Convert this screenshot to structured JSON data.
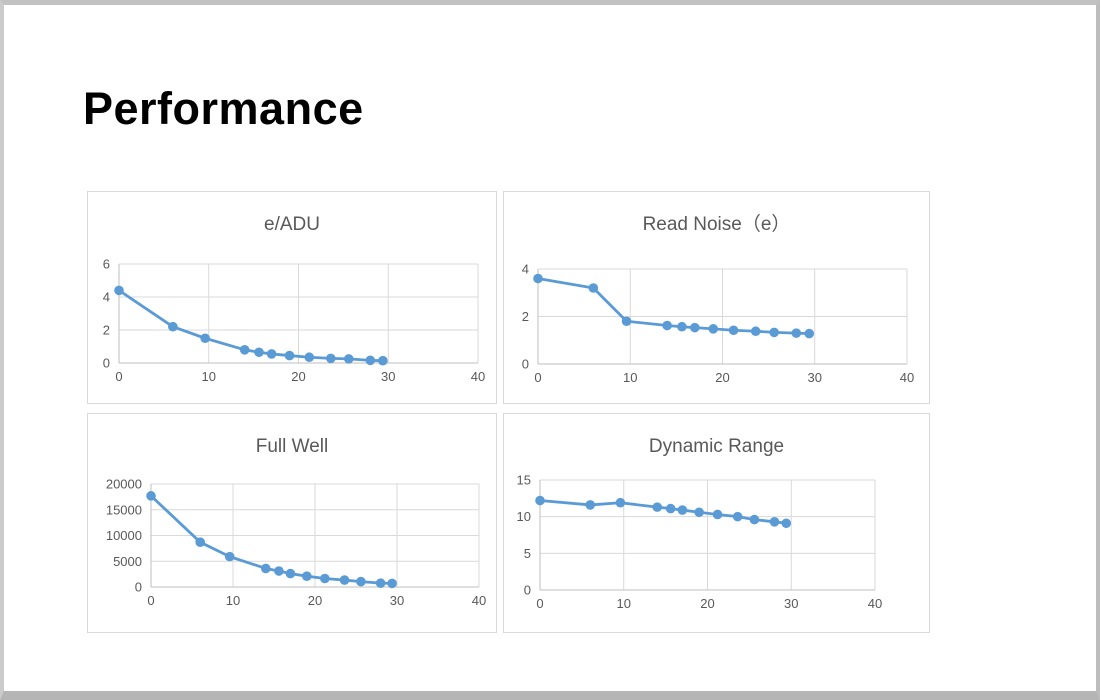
{
  "slide": {
    "title": "Performance"
  },
  "colors": {
    "series": "#5B9BD5",
    "gridline": "#d9d9d9",
    "axis": "#bfbfbf",
    "tick_label": "#595959",
    "chart_title": "#595959",
    "chart_border": "#d9d9d9"
  },
  "chart_data": [
    {
      "type": "line",
      "title": "e/ADU",
      "xlabel": "",
      "ylabel": "",
      "x": [
        0,
        6,
        9.6,
        14,
        15.6,
        17,
        19,
        21.2,
        23.6,
        25.6,
        28,
        29.4
      ],
      "values": [
        4.4,
        2.2,
        1.5,
        0.8,
        0.65,
        0.55,
        0.45,
        0.35,
        0.28,
        0.25,
        0.16,
        0.14
      ],
      "xlim": [
        0,
        40
      ],
      "ylim": [
        0,
        6
      ],
      "xticks": [
        0,
        10,
        20,
        30,
        40
      ],
      "yticks": [
        0,
        2,
        4,
        6
      ],
      "grid": true,
      "legend": "none",
      "marker": "circle"
    },
    {
      "type": "line",
      "title": "Read Noise（e）",
      "xlabel": "",
      "ylabel": "",
      "x": [
        0,
        6,
        9.6,
        14,
        15.6,
        17,
        19,
        21.2,
        23.6,
        25.6,
        28,
        29.4
      ],
      "values": [
        3.6,
        3.2,
        1.8,
        1.62,
        1.57,
        1.53,
        1.48,
        1.42,
        1.38,
        1.33,
        1.3,
        1.28
      ],
      "xlim": [
        0,
        40
      ],
      "ylim": [
        0,
        4
      ],
      "xticks": [
        0,
        10,
        20,
        30,
        40
      ],
      "yticks": [
        0,
        2,
        4
      ],
      "grid": true,
      "legend": "none",
      "marker": "circle"
    },
    {
      "type": "line",
      "title": "Full Well",
      "xlabel": "",
      "ylabel": "",
      "x": [
        0,
        6,
        9.6,
        14,
        15.6,
        17,
        19,
        21.2,
        23.6,
        25.6,
        28,
        29.4
      ],
      "values": [
        17700,
        8700,
        5900,
        3600,
        3100,
        2600,
        2100,
        1650,
        1350,
        1050,
        750,
        700
      ],
      "xlim": [
        0,
        40
      ],
      "ylim": [
        0,
        20000
      ],
      "xticks": [
        0,
        10,
        20,
        30,
        40
      ],
      "yticks": [
        0,
        5000,
        10000,
        15000,
        20000
      ],
      "grid": true,
      "legend": "none",
      "marker": "circle"
    },
    {
      "type": "line",
      "title": "Dynamic Range",
      "xlabel": "",
      "ylabel": "",
      "x": [
        0,
        6,
        9.6,
        14,
        15.6,
        17,
        19,
        21.2,
        23.6,
        25.6,
        28,
        29.4
      ],
      "values": [
        12.2,
        11.6,
        11.9,
        11.3,
        11.1,
        10.9,
        10.6,
        10.3,
        10.0,
        9.6,
        9.3,
        9.1
      ],
      "xlim": [
        0,
        40
      ],
      "ylim": [
        0,
        15
      ],
      "xticks": [
        0,
        10,
        20,
        30,
        40
      ],
      "yticks": [
        0,
        5,
        10,
        15
      ],
      "grid": true,
      "legend": "none",
      "marker": "circle"
    }
  ]
}
